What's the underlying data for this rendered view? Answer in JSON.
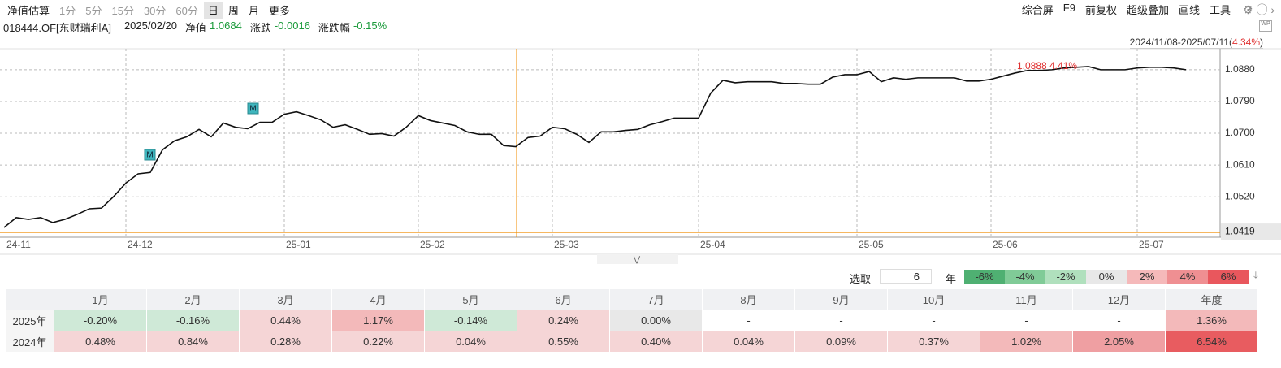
{
  "toolbar": {
    "left": [
      "净值估算",
      "1分",
      "5分",
      "15分",
      "30分",
      "60分",
      "日",
      "周",
      "月",
      "更多"
    ],
    "selected": 6,
    "right": [
      "综合屏",
      "F9",
      "前复权",
      "超级叠加",
      "画线",
      "工具"
    ]
  },
  "info": {
    "code": "018444.OF[东财瑞利A]",
    "date": "2025/02/20",
    "nav_label": "净值",
    "nav": "1.0684",
    "change_label": "涨跌",
    "change": "-0.0016",
    "pct_label": "涨跌幅",
    "pct": "-0.15%"
  },
  "range": {
    "period": "2024/11/08-2025/07/11(",
    "return": "4.34%",
    "close": ")"
  },
  "chart_data": {
    "type": "line",
    "color": "#111111",
    "categories": [
      "24-11",
      null,
      null,
      null,
      null,
      null,
      null,
      null,
      null,
      null,
      "24-12",
      null,
      null,
      null,
      null,
      null,
      null,
      null,
      null,
      null,
      null,
      null,
      null,
      "25-01",
      null,
      null,
      null,
      null,
      null,
      null,
      null,
      null,
      null,
      null,
      "25-02",
      null,
      null,
      null,
      null,
      null,
      null,
      null,
      null,
      null,
      null,
      "25-03",
      null,
      null,
      null,
      null,
      null,
      null,
      null,
      null,
      null,
      null,
      null,
      "25-04",
      null,
      null,
      null,
      null,
      null,
      null,
      null,
      null,
      null,
      null,
      null,
      null,
      "25-05",
      null,
      null,
      null,
      null,
      null,
      null,
      null,
      null,
      null,
      null,
      "25-06",
      null,
      null,
      null,
      null,
      null,
      null,
      null,
      null,
      null,
      null,
      null,
      "25-07",
      null,
      null,
      null,
      null
    ],
    "series": [
      {
        "name": "018444.OF[东财瑞利A]",
        "color": "#111111",
        "values": [
          1.0433,
          1.0461,
          1.0456,
          1.0461,
          1.0447,
          1.0456,
          1.047,
          1.0486,
          1.0488,
          1.0521,
          1.0559,
          1.0585,
          1.0589,
          1.0653,
          1.0679,
          1.069,
          1.0711,
          1.069,
          1.0729,
          1.0717,
          1.0713,
          1.0731,
          1.0731,
          1.0754,
          1.0761,
          1.075,
          1.0738,
          1.0717,
          1.0724,
          1.0711,
          1.0697,
          1.0699,
          1.0692,
          1.0717,
          1.075,
          1.0736,
          1.0729,
          1.0722,
          1.0704,
          1.0697,
          1.0697,
          1.0665,
          1.0662,
          1.0688,
          1.0692,
          1.0717,
          1.0713,
          1.0697,
          1.0674,
          1.0704,
          1.0704,
          1.0708,
          1.0711,
          1.0724,
          1.0733,
          1.0743,
          1.0743,
          1.0743,
          1.0814,
          1.085,
          1.0843,
          1.0846,
          1.0846,
          1.0846,
          1.0841,
          1.0841,
          1.0839,
          1.0839,
          1.0859,
          1.0866,
          1.0866,
          1.0875,
          1.0846,
          1.0857,
          1.0853,
          1.0857,
          1.0857,
          1.0857,
          1.0857,
          1.0848,
          1.0848,
          1.0853,
          1.0862,
          1.0871,
          1.0878,
          1.0878,
          1.088,
          1.0885,
          1.0887,
          1.0889,
          1.088,
          1.088,
          1.088,
          1.0885,
          1.0887,
          1.0887,
          1.0885,
          1.088
        ]
      }
    ],
    "ylim": [
      1.041,
      1.0935
    ],
    "yticks": [
      {
        "value": 1.088,
        "label": "1.0880"
      },
      {
        "value": 1.079,
        "label": "1.0790"
      },
      {
        "value": 1.07,
        "label": "1.0700"
      },
      {
        "value": 1.061,
        "label": "1.0610"
      },
      {
        "value": 1.052,
        "label": "1.0520"
      }
    ],
    "reference_line": 1.0419,
    "reference_color": "#f08c00",
    "grid": true,
    "annotations": [
      "1.0888 4.41%"
    ],
    "markers": [
      "M",
      "M"
    ]
  },
  "selector": {
    "label": "选取",
    "value": "6",
    "unit": "年",
    "legend": [
      {
        "label": "-6%",
        "color": "#4fb072"
      },
      {
        "label": "-4%",
        "color": "#80cb97"
      },
      {
        "label": "-2%",
        "color": "#b0e0bd"
      },
      {
        "label": "0%",
        "color": "#e8e8e8"
      },
      {
        "label": "2%",
        "color": "#f5b9ba"
      },
      {
        "label": "4%",
        "color": "#ef8f92"
      },
      {
        "label": "6%",
        "color": "#e9575d"
      }
    ]
  },
  "table": {
    "columns": [
      "1月",
      "2月",
      "3月",
      "4月",
      "5月",
      "6月",
      "7月",
      "8月",
      "9月",
      "10月",
      "11月",
      "12月",
      "年度"
    ],
    "rows": [
      {
        "label": "2025年",
        "cells": [
          "-0.20%",
          "-0.16%",
          "0.44%",
          "1.17%",
          "-0.14%",
          "0.24%",
          "0.00%",
          "-",
          "-",
          "-",
          "-",
          "-",
          "1.36%"
        ],
        "colors": [
          "#cfe9d7",
          "#cfe9d7",
          "#f5d5d6",
          "#f3b9ba",
          "#cfe9d7",
          "#f5d5d6",
          "#e8e8e8",
          "#ffffff",
          "#ffffff",
          "#ffffff",
          "#ffffff",
          "#ffffff",
          "#f3b9ba"
        ]
      },
      {
        "label": "2024年",
        "cells": [
          "0.48%",
          "0.84%",
          "0.28%",
          "0.22%",
          "0.04%",
          "0.55%",
          "0.40%",
          "0.04%",
          "0.09%",
          "0.37%",
          "1.02%",
          "2.05%",
          "6.54%"
        ],
        "colors": [
          "#f5d5d6",
          "#f5d5d6",
          "#f5d5d6",
          "#f5d5d6",
          "#f5d5d6",
          "#f5d5d6",
          "#f5d5d6",
          "#f5d5d6",
          "#f5d5d6",
          "#f5d5d6",
          "#f3b9ba",
          "#ef9fa2",
          "#e85c60"
        ]
      }
    ]
  }
}
